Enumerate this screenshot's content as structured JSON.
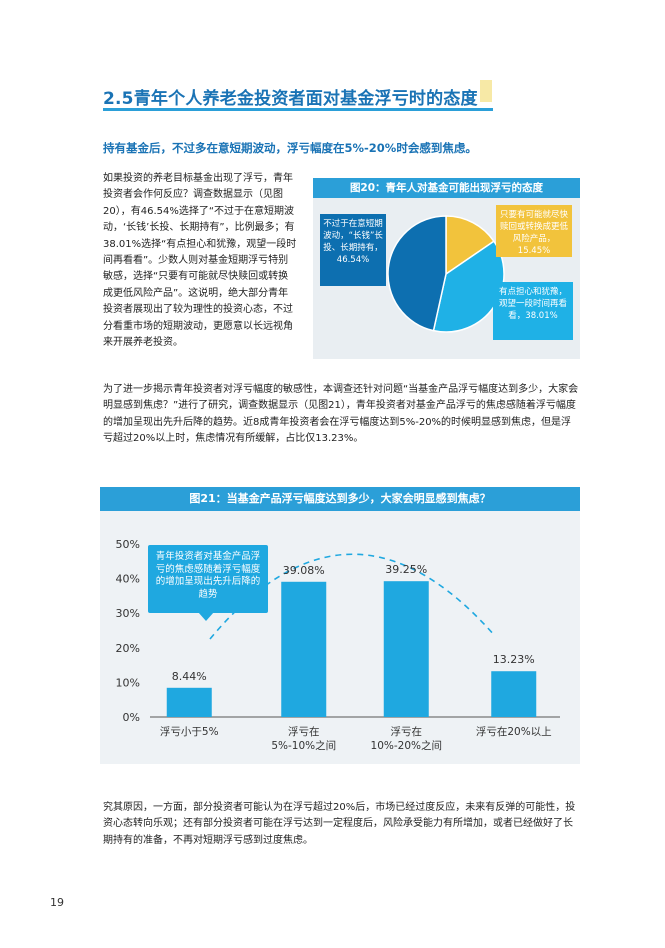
{
  "section": {
    "title": "2.5青年个人养老金投资者面对基金浮亏时的态度",
    "subtitle": "持有基金后，不过多在意短期波动，浮亏幅度在5%-20%时会感到焦虑。"
  },
  "paragraphs": {
    "p1": "如果投资的养老目标基金出现了浮亏，青年投资者会作何反应？调查数据显示（见图20），有46.54%选择了“不过于在意短期波动，‘长钱’长投、长期持有”，比例最多；有38.01%选择“有点担心和犹豫，观望一段时间再看看”。少数人则对基金短期浮亏特别敏感，选择“只要有可能就尽快赎回或转换成更低风险产品”。这说明，绝大部分青年投资者展现出了较为理性的投资心态，不过分看重市场的短期波动，更愿意以长远视角来开展养老投资。",
    "p2": "为了进一步揭示青年投资者对浮亏幅度的敏感性，本调查还针对问题“当基金产品浮亏幅度达到多少，大家会明显感到焦虑？”进行了研究，调查数据显示（见图21），青年投资者对基金产品浮亏的焦虑感随着浮亏幅度的增加呈现出先升后降的趋势。近8成青年投资者会在浮亏幅度达到5%-20%的时候明显感到焦虑，但是浮亏超过20%以上时，焦虑情况有所缓解，占比仅13.23%。",
    "p3": "究其原因，一方面，部分投资者可能认为在浮亏超过20%后，市场已经过度反应，未来有反弹的可能性，投资心态转向乐观；还有部分投资者可能在浮亏达到一定程度后，风险承受能力有所增加，或者已经做好了长期持有的准备，不再对短期浮亏感到过度焦虑。"
  },
  "page_number": "19",
  "colors": {
    "accent": "#2b9fd8",
    "dark_blue": "#0d6fb0",
    "light_blue": "#1fb1e6",
    "yellow": "#f2c33c",
    "panel": "#e9eef2"
  },
  "chart_data": [
    {
      "type": "pie",
      "title": "图20：青年人对基金可能出现浮亏的态度",
      "categories": [
        "不过于在意短期波动，“长钱”长投、长期持有，46.54%",
        "只要有可能就尽快赎回或转换更低风险产品，15.45%",
        "有点担心和犹豫，观望一段时间再看看，38.01%"
      ],
      "labels": {
        "a": "不过于在意短期波动，“长钱”长投、长期持有，46.54%",
        "b": "只要有可能就尽快赎回或转换成更低风险产品，15.45%",
        "c": "有点担心和犹豫，观望一段时间再看看，38.01%"
      },
      "values": [
        46.54,
        15.45,
        38.01
      ],
      "colors": [
        "#0d6fb0",
        "#f2c33c",
        "#1fb1e6"
      ]
    },
    {
      "type": "bar",
      "title": "图21：当基金产品浮亏幅度达到多少，大家会明显感到焦虑？",
      "categories": [
        "浮亏小于5%",
        "浮亏在5%-10%之间",
        "浮亏在10%-20%之间",
        "浮亏在20%以上"
      ],
      "category_lines": [
        [
          "浮亏小于5%"
        ],
        [
          "浮亏在",
          "5%-10%之间"
        ],
        [
          "浮亏在",
          "10%-20%之间"
        ],
        [
          "浮亏在20%以上"
        ]
      ],
      "values": [
        8.44,
        39.08,
        39.25,
        13.23
      ],
      "value_labels": [
        "8.44%",
        "39.08%",
        "39.25%",
        "13.23%"
      ],
      "ylim": [
        0,
        50
      ],
      "yticks": [
        "0%",
        "10%",
        "20%",
        "30%",
        "40%",
        "50%"
      ],
      "grid": false,
      "bar_color": "#1fa8e0",
      "annotation": "青年投资者对基金产品浮亏的焦虑感随着浮亏幅度的增加呈现出先升后降的趋势"
    }
  ]
}
